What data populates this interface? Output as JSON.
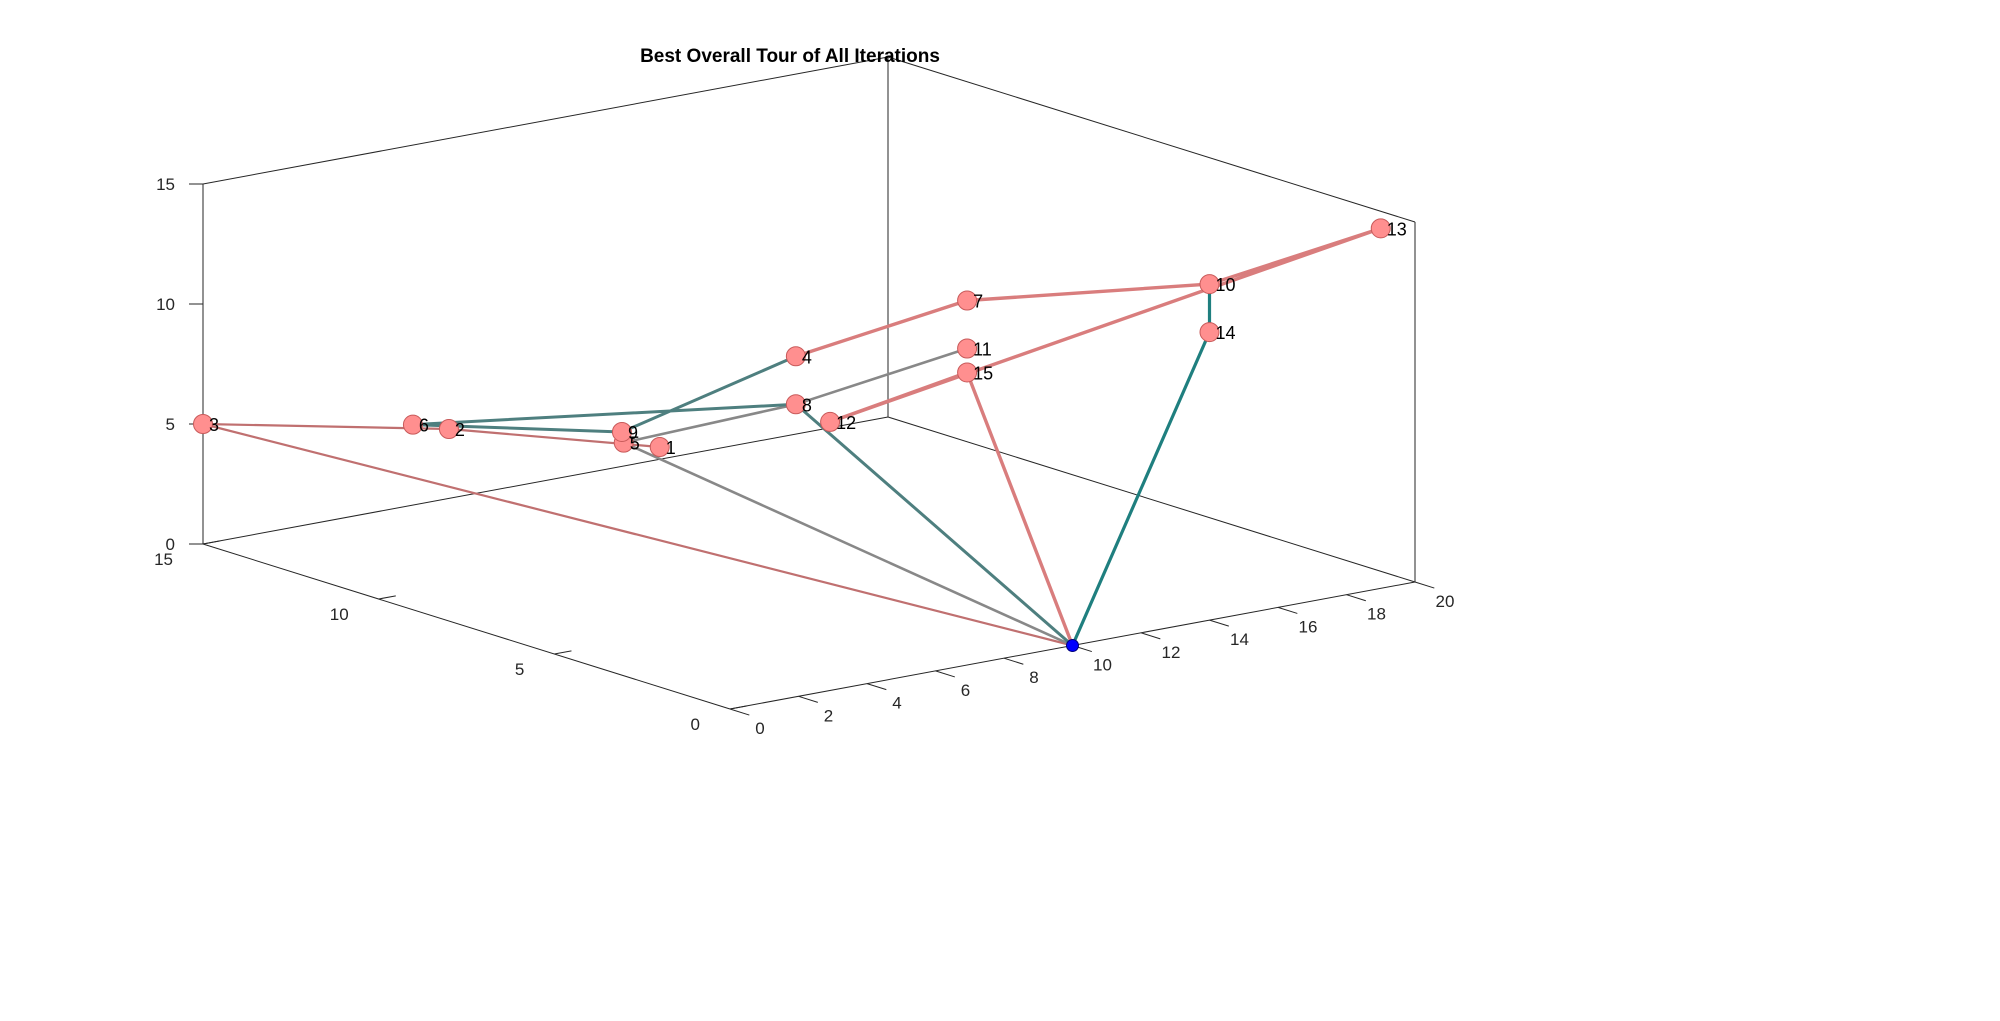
{
  "chart_data": {
    "type": "line",
    "title": "Best Overall Tour of All Iterations",
    "xlabel": "",
    "ylabel": "",
    "zlabel": "",
    "xlim": [
      0,
      20
    ],
    "ylim": [
      0,
      15
    ],
    "zlim": [
      0,
      15
    ],
    "x_ticks": [
      "0",
      "2",
      "4",
      "6",
      "8",
      "10",
      "12",
      "14",
      "16",
      "18",
      "20"
    ],
    "y_ticks": [
      "0",
      "5",
      "10",
      "15"
    ],
    "z_ticks": [
      "0",
      "5",
      "10",
      "15"
    ],
    "grid": false,
    "depot": {
      "label": "",
      "x": 10,
      "y": 0,
      "z": 0,
      "color": "#0000ff"
    },
    "nodes": [
      {
        "label": "1",
        "x": 0,
        "y": 2,
        "z": 10
      },
      {
        "label": "2",
        "x": 0,
        "y": 8,
        "z": 8
      },
      {
        "label": "3",
        "x": 0,
        "y": 15,
        "z": 5
      },
      {
        "label": "4",
        "x": 5,
        "y": 3,
        "z": 12
      },
      {
        "label": "5",
        "x": 1,
        "y": 4,
        "z": 9
      },
      {
        "label": "6",
        "x": 1,
        "y": 10,
        "z": 7
      },
      {
        "label": "7",
        "x": 10,
        "y": 3,
        "z": 13
      },
      {
        "label": "8",
        "x": 5,
        "y": 3,
        "z": 10
      },
      {
        "label": "9",
        "x": 3,
        "y": 6,
        "z": 8
      },
      {
        "label": "10",
        "x": 14,
        "y": 0,
        "z": 14
      },
      {
        "label": "11",
        "x": 10,
        "y": 3,
        "z": 11
      },
      {
        "label": "12",
        "x": 6,
        "y": 3,
        "z": 9
      },
      {
        "label": "13",
        "x": 19,
        "y": 0,
        "z": 15
      },
      {
        "label": "14",
        "x": 14,
        "y": 0,
        "z": 12
      },
      {
        "label": "15",
        "x": 10,
        "y": 3,
        "z": 10
      }
    ],
    "series": [
      {
        "route": [
          "depot",
          "3",
          "2",
          "1"
        ],
        "color": "#c07070",
        "width": 2.2
      },
      {
        "route": [
          "depot",
          "5",
          "8",
          "11"
        ],
        "color": "#888888",
        "width": 2.6
      },
      {
        "route": [
          "depot",
          "8",
          "6",
          "9",
          "4"
        ],
        "color": "#4e7f7f",
        "width": 3
      },
      {
        "route": [
          "depot",
          "15",
          "12",
          "13",
          "10",
          "7",
          "4"
        ],
        "color": "#d97d7d",
        "width": 3.4
      },
      {
        "route": [
          "depot",
          "14",
          "10"
        ],
        "color": "#1f7f7f",
        "width": 3.2
      }
    ],
    "node_color": "#ff8f8f"
  }
}
